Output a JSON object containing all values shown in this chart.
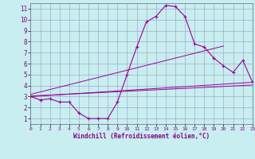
{
  "xlabel": "Windchill (Refroidissement éolien,°C)",
  "bg_color": "#c8eef0",
  "grid_color": "#9999bb",
  "line_color": "#990099",
  "xlim": [
    0,
    23
  ],
  "ylim": [
    0.5,
    11.5
  ],
  "xticks": [
    0,
    1,
    2,
    3,
    4,
    5,
    6,
    7,
    8,
    9,
    10,
    11,
    12,
    13,
    14,
    15,
    16,
    17,
    18,
    19,
    20,
    21,
    22,
    23
  ],
  "yticks": [
    1,
    2,
    3,
    4,
    5,
    6,
    7,
    8,
    9,
    10,
    11
  ],
  "curve1_x": [
    0,
    1,
    2,
    3,
    4,
    5,
    6,
    7,
    8,
    9,
    10,
    11,
    12,
    13,
    14,
    15,
    16,
    17,
    18,
    19,
    20,
    21,
    22,
    23
  ],
  "curve1_y": [
    3.0,
    2.7,
    2.8,
    2.5,
    2.5,
    1.5,
    1.0,
    1.0,
    1.0,
    2.5,
    5.0,
    7.5,
    9.8,
    10.3,
    11.3,
    11.2,
    10.3,
    7.8,
    7.5,
    6.5,
    5.8,
    5.2,
    6.3,
    4.3
  ],
  "line1_x": [
    0,
    23
  ],
  "line1_y": [
    3.0,
    4.3
  ],
  "line2_x": [
    0,
    20
  ],
  "line2_y": [
    3.2,
    7.6
  ],
  "line3_x": [
    0,
    23
  ],
  "line3_y": [
    3.05,
    4.05
  ],
  "figsize": [
    3.2,
    2.0
  ],
  "dpi": 100
}
